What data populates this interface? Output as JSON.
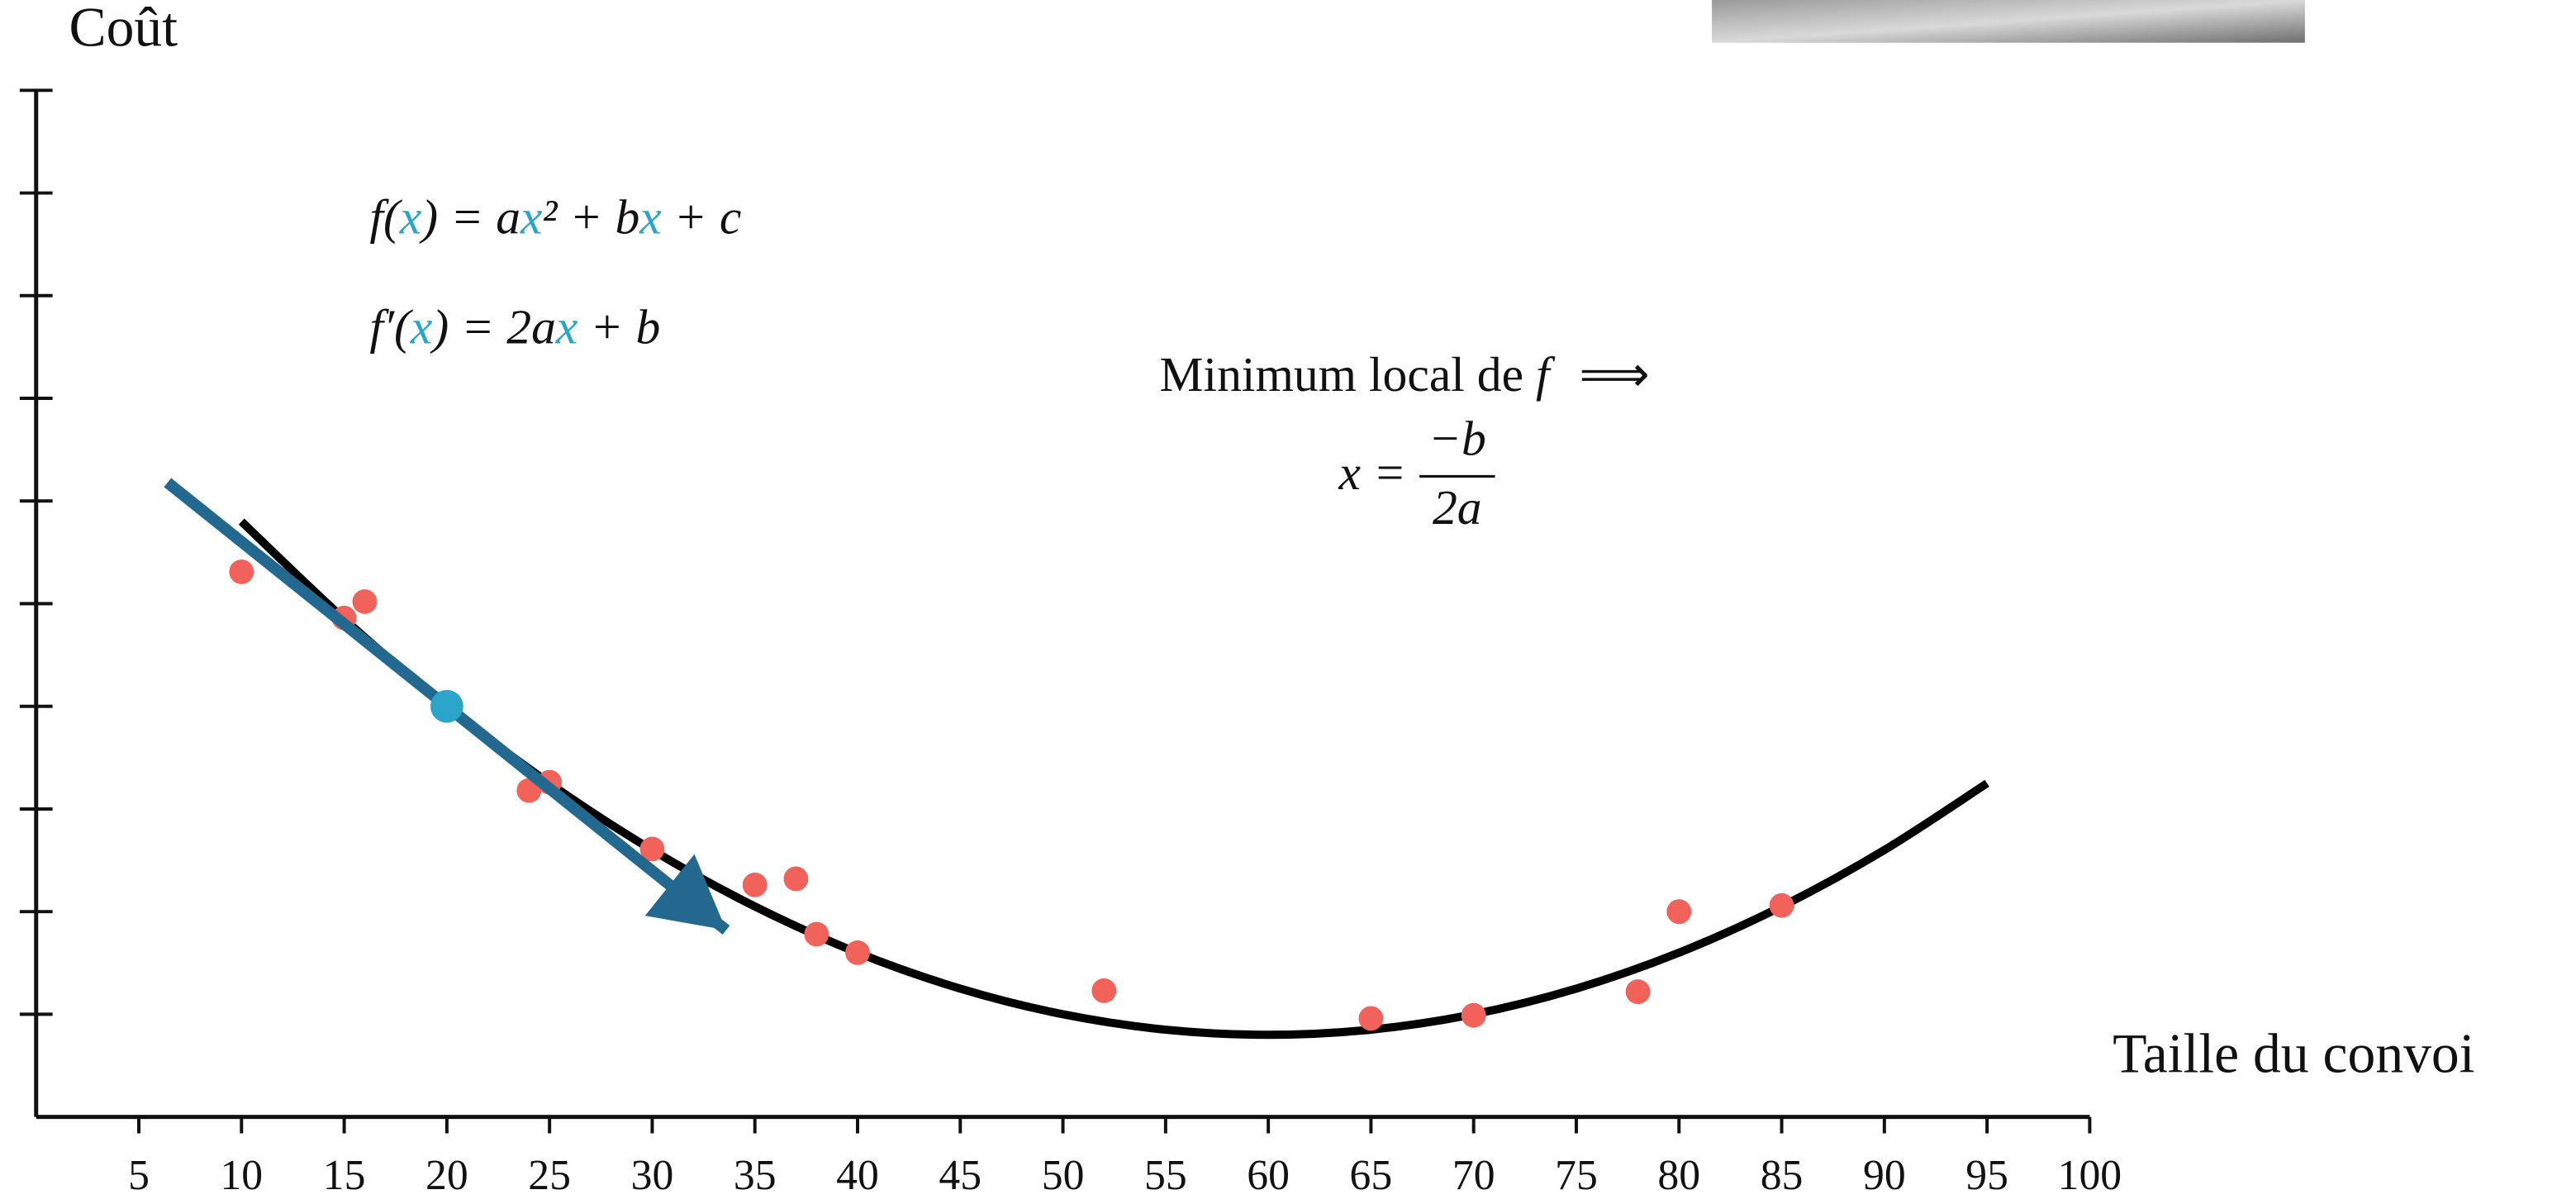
{
  "chart_data": {
    "type": "scatter",
    "xlabel": "Taille du convoi",
    "ylabel": "Coût",
    "xlim": [
      0,
      100
    ],
    "ylim": [
      0,
      10
    ],
    "xticks": [
      5,
      10,
      15,
      20,
      25,
      30,
      35,
      40,
      45,
      50,
      55,
      60,
      65,
      70,
      75,
      80,
      85,
      90,
      95,
      100
    ],
    "yticks": [
      1,
      2,
      3,
      4,
      5,
      6,
      7,
      8,
      9,
      10
    ],
    "show_ytick_labels": false,
    "points": {
      "color": "#f0625a",
      "x": [
        10,
        15,
        16,
        24,
        25,
        30,
        35,
        37,
        38,
        40,
        52,
        65,
        70,
        78,
        80,
        85
      ],
      "values": [
        5.31,
        4.86,
        5.02,
        3.18,
        3.26,
        2.61,
        2.26,
        2.32,
        1.78,
        1.6,
        1.23,
        0.96,
        0.99,
        1.22,
        2.0,
        2.06
      ]
    },
    "highlight": {
      "color": "#2aa5c9",
      "x": [
        20
      ],
      "values": [
        4.0
      ]
    },
    "curve": {
      "color": "#000000",
      "x": [
        10,
        15,
        20,
        25,
        30,
        35,
        40,
        45,
        50,
        55,
        60,
        65,
        70,
        75,
        80,
        85,
        90,
        95
      ],
      "values": [
        5.8,
        4.85,
        4.0,
        3.25,
        2.6,
        2.05,
        1.6,
        1.25,
        1.0,
        0.85,
        0.8,
        0.85,
        1.0,
        1.25,
        1.6,
        2.05,
        2.6,
        3.25
      ]
    },
    "tangent": {
      "color": "#23698f",
      "x": [
        6.4,
        33.6
      ],
      "values": [
        6.18,
        1.82
      ]
    },
    "highlight_color": "#2aa5c9",
    "formula_1": [
      {
        "text": "f("
      },
      {
        "text": "x",
        "highlight": true
      },
      {
        "text": ") = a"
      },
      {
        "text": "x",
        "highlight": true
      },
      {
        "text": "² + b"
      },
      {
        "text": "x",
        "highlight": true
      },
      {
        "text": " + c"
      }
    ],
    "formula_2": [
      {
        "text": "f′("
      },
      {
        "text": "x",
        "highlight": true
      },
      {
        "text": ") = 2a"
      },
      {
        "text": "x",
        "highlight": true
      },
      {
        "text": " + b"
      }
    ],
    "minimum_text": [
      "Minimum local de ",
      "f",
      "⟹"
    ],
    "solution": {
      "lhs": "x =",
      "numerator": "−b",
      "denominator": "2a"
    }
  }
}
